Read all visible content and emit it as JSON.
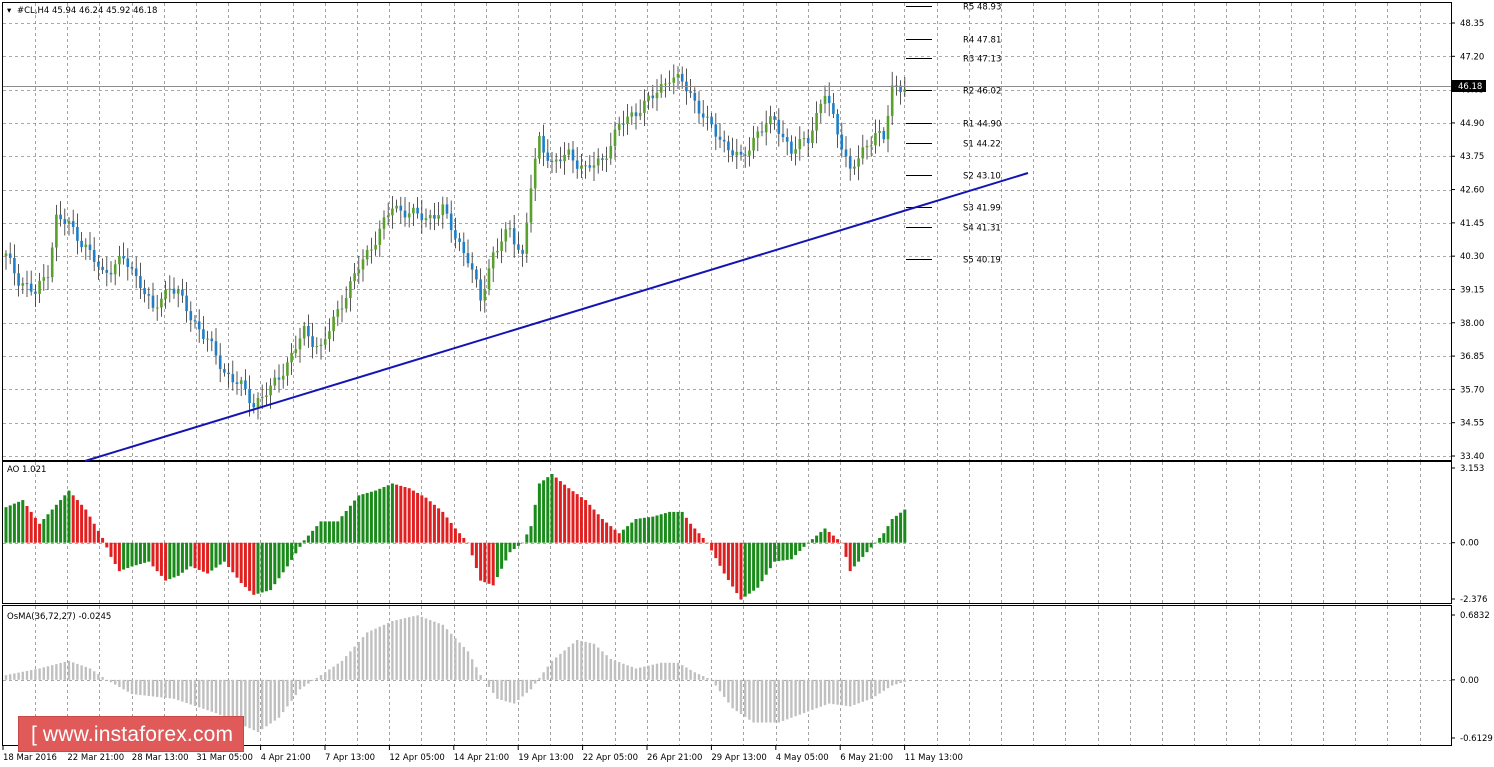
{
  "chart_data": [
    {
      "type": "candlestick",
      "symbol_header": "#CL,H4  45.94 46.24 45.92 46.18",
      "current_price": "46.18",
      "y_ticks": [
        "48.35",
        "47.20",
        "46.05",
        "44.90",
        "43.75",
        "42.60",
        "41.45",
        "40.30",
        "39.15",
        "38.00",
        "36.85",
        "35.70",
        "34.55",
        "33.40"
      ],
      "ylim": [
        33.4,
        48.35
      ],
      "pivot_levels": [
        {
          "label": "R5 48.93",
          "value": 48.93
        },
        {
          "label": "R4 47.81",
          "value": 47.81
        },
        {
          "label": "R3 47.13",
          "value": 47.13
        },
        {
          "label": "R2 46.02",
          "value": 46.02
        },
        {
          "label": "R1 44.90",
          "value": 44.9
        },
        {
          "label": "S1 44.22",
          "value": 44.22
        },
        {
          "label": "S2 43.10",
          "value": 43.1
        },
        {
          "label": "S3 41.99",
          "value": 41.99
        },
        {
          "label": "S4 41.31",
          "value": 41.31
        },
        {
          "label": "S5 40.19",
          "value": 40.19
        }
      ],
      "trendline": {
        "color": "#1414b4"
      },
      "colors": {
        "up": "#5aa02c",
        "down": "#1e7fc8",
        "wick": "#2b2b2b"
      },
      "close_keypoints": [
        [
          0,
          40.3
        ],
        [
          3,
          39.5
        ],
        [
          7,
          39.0
        ],
        [
          10,
          39.8
        ],
        [
          12,
          41.6
        ],
        [
          15,
          41.4
        ],
        [
          19,
          40.6
        ],
        [
          23,
          39.7
        ],
        [
          28,
          40.2
        ],
        [
          32,
          39.4
        ],
        [
          35,
          38.4
        ],
        [
          39,
          39.3
        ],
        [
          41,
          39.0
        ],
        [
          44,
          38.2
        ],
        [
          48,
          37.4
        ],
        [
          52,
          36.3
        ],
        [
          56,
          35.8
        ],
        [
          59,
          35.2
        ],
        [
          63,
          35.7
        ],
        [
          67,
          36.6
        ],
        [
          71,
          37.7
        ],
        [
          75,
          37.1
        ],
        [
          79,
          38.4
        ],
        [
          84,
          39.9
        ],
        [
          88,
          40.9
        ],
        [
          92,
          42.0
        ],
        [
          96,
          41.8
        ],
        [
          100,
          41.6
        ],
        [
          104,
          41.9
        ],
        [
          107,
          41.0
        ],
        [
          110,
          40.2
        ],
        [
          113,
          38.8
        ],
        [
          116,
          40.4
        ],
        [
          120,
          41.2
        ],
        [
          123,
          40.3
        ],
        [
          125,
          42.7
        ],
        [
          127,
          44.3
        ],
        [
          130,
          43.5
        ],
        [
          134,
          43.8
        ],
        [
          138,
          43.3
        ],
        [
          142,
          43.6
        ],
        [
          146,
          44.8
        ],
        [
          150,
          45.3
        ],
        [
          154,
          45.8
        ],
        [
          158,
          46.5
        ],
        [
          161,
          46.3
        ],
        [
          163,
          45.9
        ],
        [
          167,
          44.9
        ],
        [
          171,
          44.2
        ],
        [
          175,
          43.6
        ],
        [
          179,
          44.6
        ],
        [
          183,
          45.0
        ],
        [
          187,
          43.9
        ],
        [
          191,
          44.4
        ],
        [
          195,
          45.9
        ],
        [
          199,
          44.2
        ],
        [
          201,
          43.2
        ],
        [
          204,
          43.9
        ],
        [
          207,
          44.6
        ],
        [
          209,
          44.3
        ],
        [
          211,
          46.1
        ],
        [
          214,
          46.2
        ]
      ],
      "x_labels": [
        "18 Mar 2016",
        "22 Mar 21:00",
        "28 Mar 13:00",
        "31 Mar 05:00",
        "4 Apr 21:00",
        "7 Apr 13:00",
        "12 Apr 05:00",
        "14 Apr 21:00",
        "19 Apr 13:00",
        "22 Apr 05:00",
        "26 Apr 21:00",
        "29 Apr 13:00",
        "4 May 05:00",
        "6 May 21:00",
        "11 May 13:00"
      ]
    },
    {
      "type": "bar",
      "name": "AO 1.021",
      "y_ticks": [
        "3.153",
        "0.00",
        "-2.376"
      ],
      "ylim": [
        -2.376,
        3.153
      ],
      "colors": {
        "up": "#1a8a1a",
        "down": "#e02020"
      },
      "keypoints": [
        [
          0,
          1.5
        ],
        [
          4,
          1.8
        ],
        [
          8,
          0.8
        ],
        [
          12,
          1.6
        ],
        [
          15,
          2.2
        ],
        [
          19,
          1.4
        ],
        [
          23,
          0.2
        ],
        [
          25,
          -0.6
        ],
        [
          27,
          -1.2
        ],
        [
          30,
          -1.0
        ],
        [
          34,
          -0.8
        ],
        [
          38,
          -1.6
        ],
        [
          41,
          -1.4
        ],
        [
          44,
          -1.0
        ],
        [
          48,
          -1.3
        ],
        [
          52,
          -0.8
        ],
        [
          56,
          -1.7
        ],
        [
          59,
          -2.2
        ],
        [
          63,
          -2.0
        ],
        [
          67,
          -1.0
        ],
        [
          71,
          0.1
        ],
        [
          75,
          0.9
        ],
        [
          79,
          0.9
        ],
        [
          84,
          2.0
        ],
        [
          88,
          2.2
        ],
        [
          92,
          2.5
        ],
        [
          96,
          2.3
        ],
        [
          100,
          1.9
        ],
        [
          104,
          1.3
        ],
        [
          107,
          0.6
        ],
        [
          110,
          0.0
        ],
        [
          113,
          -1.6
        ],
        [
          116,
          -1.8
        ],
        [
          120,
          -0.4
        ],
        [
          123,
          0.0
        ],
        [
          125,
          0.7
        ],
        [
          127,
          2.5
        ],
        [
          130,
          2.9
        ],
        [
          134,
          2.3
        ],
        [
          138,
          1.8
        ],
        [
          142,
          1.0
        ],
        [
          146,
          0.4
        ],
        [
          150,
          1.0
        ],
        [
          154,
          1.1
        ],
        [
          158,
          1.3
        ],
        [
          161,
          1.3
        ],
        [
          163,
          0.8
        ],
        [
          167,
          0.0
        ],
        [
          171,
          -1.3
        ],
        [
          175,
          -2.4
        ],
        [
          179,
          -1.9
        ],
        [
          183,
          -0.8
        ],
        [
          187,
          -0.7
        ],
        [
          191,
          0.0
        ],
        [
          195,
          0.6
        ],
        [
          199,
          0.0
        ],
        [
          201,
          -1.2
        ],
        [
          204,
          -0.6
        ],
        [
          207,
          0.0
        ],
        [
          209,
          0.4
        ],
        [
          211,
          1.0
        ],
        [
          214,
          1.4
        ]
      ]
    },
    {
      "type": "bar",
      "name": "OsMA(36,72,27) -0.0245",
      "y_ticks": [
        "0.6832",
        "0.00",
        "-0.6129"
      ],
      "ylim": [
        -0.6129,
        0.6832
      ],
      "colors": {
        "bar": "#c0c0c0"
      },
      "keypoints": [
        [
          0,
          0.05
        ],
        [
          8,
          0.12
        ],
        [
          15,
          0.2
        ],
        [
          20,
          0.12
        ],
        [
          24,
          0.0
        ],
        [
          30,
          -0.15
        ],
        [
          40,
          -0.2
        ],
        [
          50,
          -0.35
        ],
        [
          60,
          -0.55
        ],
        [
          65,
          -0.4
        ],
        [
          70,
          -0.1
        ],
        [
          75,
          0.05
        ],
        [
          80,
          0.2
        ],
        [
          86,
          0.5
        ],
        [
          92,
          0.62
        ],
        [
          98,
          0.68
        ],
        [
          104,
          0.58
        ],
        [
          110,
          0.3
        ],
        [
          113,
          0.05
        ],
        [
          117,
          -0.2
        ],
        [
          121,
          -0.25
        ],
        [
          125,
          -0.1
        ],
        [
          130,
          0.2
        ],
        [
          136,
          0.42
        ],
        [
          140,
          0.38
        ],
        [
          144,
          0.22
        ],
        [
          150,
          0.12
        ],
        [
          156,
          0.18
        ],
        [
          160,
          0.18
        ],
        [
          164,
          0.08
        ],
        [
          168,
          0.0
        ],
        [
          173,
          -0.3
        ],
        [
          178,
          -0.45
        ],
        [
          184,
          -0.45
        ],
        [
          190,
          -0.35
        ],
        [
          196,
          -0.25
        ],
        [
          201,
          -0.28
        ],
        [
          206,
          -0.2
        ],
        [
          211,
          -0.06
        ],
        [
          214,
          -0.02
        ]
      ]
    }
  ],
  "watermark": "www.instaforex.com",
  "watermark_bracket": "["
}
